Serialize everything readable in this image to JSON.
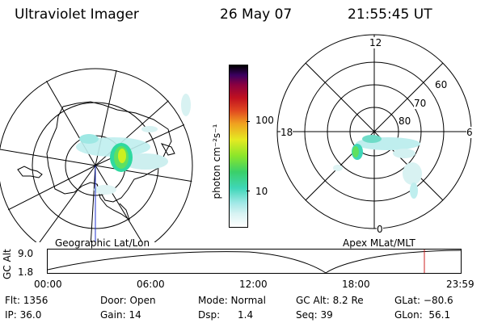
{
  "header": {
    "instrument": "Ultraviolet Imager",
    "date": "26 May 07",
    "time": "21:55:45 UT"
  },
  "colorbar": {
    "unit_label": "photon cm⁻²s⁻¹",
    "ticks": [
      "100",
      "10"
    ]
  },
  "left_map": {
    "caption": "Geographic Lat/Lon"
  },
  "right_map": {
    "caption": "Apex MLat/MLT",
    "mlt_labels": {
      "top": "12",
      "right": "6",
      "bottom": "0",
      "left": "18"
    },
    "lat_labels": [
      "60",
      "70",
      "80"
    ]
  },
  "altitude_plot": {
    "ylabel": "GC Alt",
    "y_ticks": [
      "9.0",
      "1.8"
    ],
    "x_ticks": [
      "00:00",
      "06:00",
      "12:00",
      "18:00",
      "23:59"
    ],
    "marker_color": "#cc2222"
  },
  "info": {
    "flt": "Flt: 1356",
    "ip": "IP: 36.0",
    "door": "Door: Open",
    "gain": "Gain: 14",
    "mode": "Mode: Normal",
    "dsp_label": "Dsp:",
    "dsp_value": "1.4",
    "gc_alt": "GC Alt: 8.2 Re",
    "seq": "Seq: 39",
    "glat": "GLat: −80.6",
    "glon": "GLon:  56.1"
  }
}
